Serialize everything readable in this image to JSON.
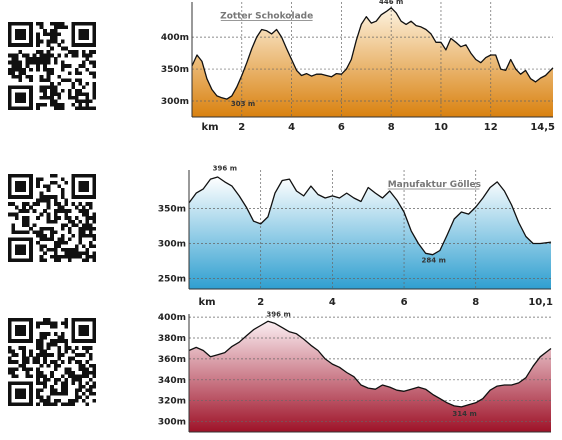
{
  "qr_codes": [
    {
      "name": "qr-code-1"
    },
    {
      "name": "qr-code-2"
    },
    {
      "name": "qr-code-3"
    }
  ],
  "chart_data": [
    {
      "type": "area",
      "title": "",
      "xlabel": "km",
      "ylabel": "",
      "x_ticks": [
        "2",
        "4",
        "6",
        "8",
        "10",
        "12",
        "14,5"
      ],
      "y_ticks": [
        "300m",
        "350m",
        "400m"
      ],
      "xlim": [
        0,
        14.5
      ],
      "ylim": [
        275,
        455
      ],
      "grid": true,
      "gradient": [
        "#fdf3e0",
        "#d9810f"
      ],
      "annotations": [
        {
          "text": "Zotter Schokolade",
          "x": 3.0,
          "y": 420
        },
        {
          "text": "446 m",
          "x": 8.0,
          "y": 446
        },
        {
          "text": "303 m",
          "x": 1.4,
          "y": 303
        }
      ],
      "series": [
        {
          "x": [
            0,
            0.2,
            0.4,
            0.6,
            0.8,
            1.0,
            1.2,
            1.4,
            1.6,
            1.8,
            2.0,
            2.2,
            2.4,
            2.6,
            2.8,
            3.0,
            3.2,
            3.4,
            3.6,
            3.8,
            4.0,
            4.2,
            4.4,
            4.6,
            4.8,
            5.0,
            5.2,
            5.4,
            5.6,
            5.8,
            6.0,
            6.2,
            6.4,
            6.6,
            6.8,
            7.0,
            7.2,
            7.4,
            7.6,
            7.8,
            8.0,
            8.2,
            8.4,
            8.6,
            8.8,
            9.0,
            9.2,
            9.4,
            9.6,
            9.8,
            10.0,
            10.2,
            10.4,
            10.6,
            10.8,
            11.0,
            11.2,
            11.4,
            11.6,
            11.8,
            12.0,
            12.2,
            12.4,
            12.6,
            12.8,
            13.0,
            13.2,
            13.4,
            13.6,
            13.8,
            14.0,
            14.2,
            14.5
          ],
          "y": [
            355,
            372,
            362,
            335,
            318,
            308,
            305,
            303,
            308,
            322,
            340,
            360,
            382,
            400,
            412,
            410,
            405,
            412,
            400,
            382,
            365,
            348,
            340,
            343,
            339,
            342,
            342,
            340,
            338,
            343,
            342,
            350,
            365,
            395,
            420,
            432,
            422,
            425,
            435,
            440,
            446,
            438,
            425,
            420,
            425,
            418,
            416,
            412,
            405,
            392,
            392,
            380,
            398,
            392,
            385,
            388,
            375,
            365,
            360,
            368,
            372,
            372,
            350,
            348,
            365,
            350,
            342,
            348,
            335,
            330,
            336,
            340,
            352
          ]
        }
      ]
    },
    {
      "type": "area",
      "title": "",
      "xlabel": "km",
      "ylabel": "",
      "x_ticks": [
        "2",
        "4",
        "6",
        "8",
        "10,1"
      ],
      "y_ticks": [
        "250m",
        "300m",
        "350m"
      ],
      "xlim": [
        0,
        10.1
      ],
      "ylim": [
        235,
        405
      ],
      "grid": true,
      "gradient": [
        "#ffffff",
        "#2f9fd0"
      ],
      "annotations": [
        {
          "text": "396 m",
          "x": 1.0,
          "y": 396
        },
        {
          "text": "Manufaktur Gölles",
          "x": 5.6,
          "y": 375
        },
        {
          "text": "284 m",
          "x": 6.6,
          "y": 284
        }
      ],
      "series": [
        {
          "x": [
            0,
            0.2,
            0.4,
            0.6,
            0.8,
            1.0,
            1.2,
            1.4,
            1.6,
            1.8,
            2.0,
            2.2,
            2.4,
            2.6,
            2.8,
            3.0,
            3.2,
            3.4,
            3.6,
            3.8,
            4.0,
            4.2,
            4.4,
            4.6,
            4.8,
            5.0,
            5.2,
            5.4,
            5.6,
            5.8,
            6.0,
            6.2,
            6.4,
            6.6,
            6.8,
            7.0,
            7.2,
            7.4,
            7.6,
            7.8,
            8.0,
            8.2,
            8.4,
            8.6,
            8.8,
            9.0,
            9.2,
            9.4,
            9.6,
            9.8,
            10.1
          ],
          "y": [
            358,
            372,
            378,
            392,
            395,
            388,
            382,
            368,
            352,
            332,
            328,
            338,
            372,
            390,
            392,
            375,
            368,
            382,
            370,
            365,
            368,
            365,
            372,
            365,
            360,
            380,
            372,
            365,
            375,
            362,
            345,
            318,
            300,
            286,
            284,
            290,
            312,
            335,
            345,
            342,
            352,
            365,
            380,
            388,
            375,
            355,
            330,
            310,
            300,
            300,
            302
          ]
        }
      ]
    },
    {
      "type": "area",
      "title": "",
      "xlabel": "",
      "ylabel": "",
      "x_ticks": [],
      "y_ticks": [
        "300m",
        "320m",
        "340m",
        "360m",
        "380m",
        "400m"
      ],
      "xlim": [
        0,
        10.1
      ],
      "ylim": [
        290,
        403
      ],
      "grid": true,
      "gradient": [
        "#fbeef2",
        "#9e1228"
      ],
      "annotations": [
        {
          "text": "396 m",
          "x": 2.5,
          "y": 396
        },
        {
          "text": "314 m",
          "x": 7.8,
          "y": 314
        }
      ],
      "series": [
        {
          "x": [
            0,
            0.2,
            0.4,
            0.6,
            0.8,
            1.0,
            1.2,
            1.4,
            1.6,
            1.8,
            2.0,
            2.2,
            2.4,
            2.6,
            2.8,
            3.0,
            3.2,
            3.4,
            3.6,
            3.8,
            4.0,
            4.2,
            4.4,
            4.6,
            4.8,
            5.0,
            5.2,
            5.4,
            5.6,
            5.8,
            6.0,
            6.2,
            6.4,
            6.6,
            6.8,
            7.0,
            7.2,
            7.4,
            7.6,
            7.8,
            8.0,
            8.2,
            8.4,
            8.6,
            8.8,
            9.0,
            9.2,
            9.4,
            9.6,
            9.8,
            10.1
          ],
          "y": [
            368,
            371,
            368,
            362,
            364,
            366,
            372,
            376,
            382,
            388,
            392,
            396,
            394,
            390,
            386,
            384,
            379,
            373,
            368,
            360,
            355,
            352,
            347,
            343,
            335,
            332,
            331,
            335,
            333,
            330,
            329,
            331,
            333,
            331,
            326,
            322,
            318,
            315,
            314,
            316,
            318,
            322,
            330,
            334,
            335,
            335,
            337,
            342,
            353,
            362,
            370
          ]
        }
      ]
    }
  ]
}
